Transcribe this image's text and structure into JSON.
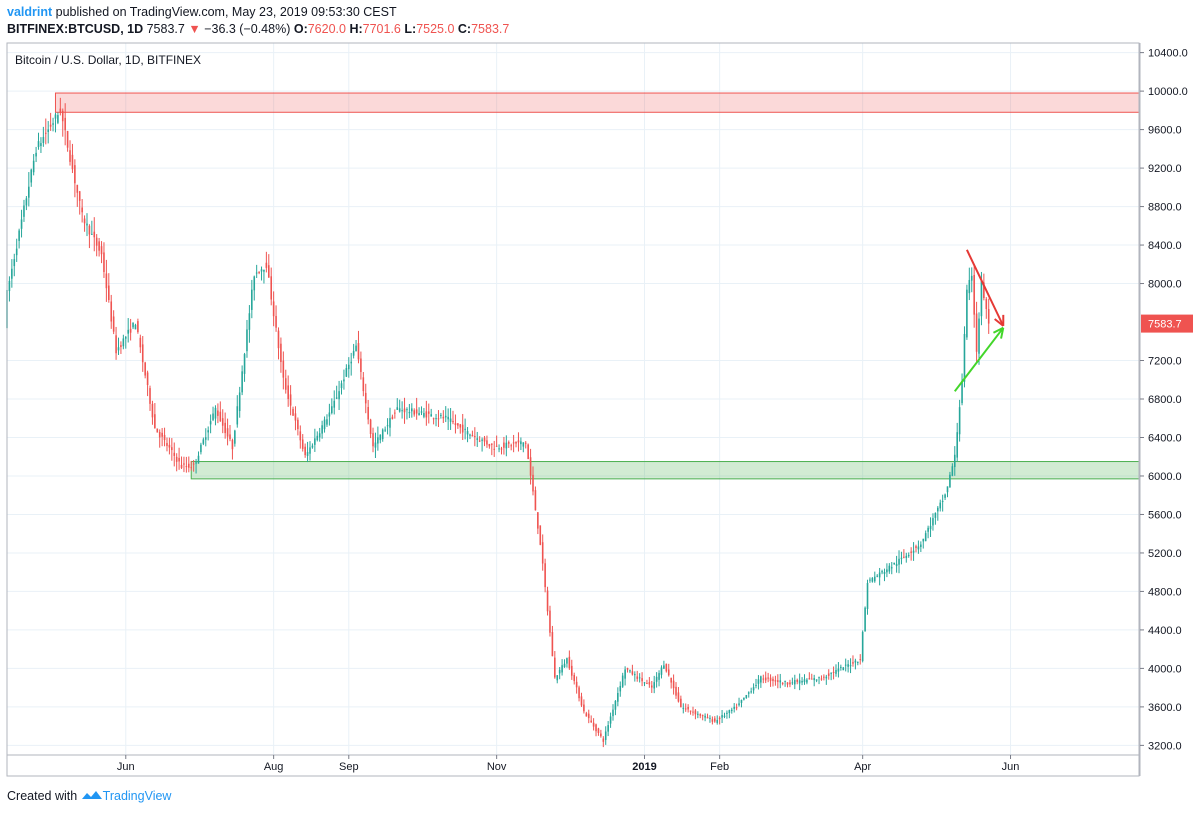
{
  "header": {
    "author": "valdrint",
    "published_text": "published on TradingView.com, May 23, 2019 09:53:30 CEST",
    "symbol": "BITFINEX:BTCUSD, 1D",
    "last": "7583.7",
    "change": "−36.3 (−0.48%)",
    "o_label": "O:",
    "o_value": "7620.0",
    "h_label": "H:",
    "h_value": "7701.6",
    "l_label": "L:",
    "l_value": "7525.0",
    "c_label": "C:",
    "c_value": "7583.7"
  },
  "footer": {
    "created_with": "Created with",
    "brand": "TradingView"
  },
  "colors": {
    "up": "#26a69a",
    "down": "#ef5350",
    "grid": "#e9f1f7",
    "resistance": "#ef5350",
    "support": "#4caf50",
    "arrow_down": "#e53935",
    "arrow_up": "#43d62a"
  },
  "chart_data": {
    "type": "candlestick",
    "title": "Bitcoin / U.S. Dollar, 1D, BITFINEX",
    "ylim": [
      3100,
      10500
    ],
    "y_ticks": [
      "10400.0",
      "10000.0",
      "9600.0",
      "9200.0",
      "8800.0",
      "8400.0",
      "8000.0",
      "7200.0",
      "6800.0",
      "6400.0",
      "6000.0",
      "5600.0",
      "5200.0",
      "4800.0",
      "4400.0",
      "4000.0",
      "3600.0",
      "3200.0"
    ],
    "x_ticks": [
      {
        "label": "Jun",
        "date": "2018-06-01"
      },
      {
        "label": "Aug",
        "date": "2018-08-01"
      },
      {
        "label": "Sep",
        "date": "2018-09-01"
      },
      {
        "label": "Nov",
        "date": "2018-11-01"
      },
      {
        "label": "2019",
        "date": "2019-01-01"
      },
      {
        "label": "Feb",
        "date": "2019-02-01"
      },
      {
        "label": "Apr",
        "date": "2019-04-01"
      },
      {
        "label": "Jun",
        "date": "2019-06-01"
      }
    ],
    "x_range": [
      "2018-04-13",
      "2019-07-24"
    ],
    "last_price": "7583.7",
    "zones": [
      {
        "type": "resistance",
        "from": "2018-05-03",
        "to": "2019-07-24",
        "low": 9780,
        "high": 9980
      },
      {
        "type": "support",
        "from": "2018-06-28",
        "to": "2019-07-24",
        "low": 5970,
        "high": 6150
      }
    ],
    "arrows": [
      {
        "color": "down",
        "from": {
          "date": "2019-05-14",
          "price": 8350
        },
        "to": {
          "date": "2019-05-29",
          "price": 7560
        }
      },
      {
        "color": "up",
        "from": {
          "date": "2019-05-09",
          "price": 6880
        },
        "to": {
          "date": "2019-05-29",
          "price": 7540
        }
      }
    ],
    "anchors": [
      [
        "2018-04-13",
        7900
      ],
      [
        "2018-04-25",
        9400
      ],
      [
        "2018-05-05",
        9800
      ],
      [
        "2018-05-14",
        8700
      ],
      [
        "2018-05-22",
        8300
      ],
      [
        "2018-05-28",
        7300
      ],
      [
        "2018-06-05",
        7600
      ],
      [
        "2018-06-13",
        6500
      ],
      [
        "2018-06-24",
        6100
      ],
      [
        "2018-06-29",
        6100
      ],
      [
        "2018-07-08",
        6700
      ],
      [
        "2018-07-15",
        6300
      ],
      [
        "2018-07-24",
        8100
      ],
      [
        "2018-07-29",
        8200
      ],
      [
        "2018-08-05",
        7000
      ],
      [
        "2018-08-14",
        6200
      ],
      [
        "2018-08-25",
        6700
      ],
      [
        "2018-09-04",
        7350
      ],
      [
        "2018-09-11",
        6300
      ],
      [
        "2018-09-21",
        6700
      ],
      [
        "2018-10-11",
        6600
      ],
      [
        "2018-10-20",
        6450
      ],
      [
        "2018-10-31",
        6300
      ],
      [
        "2018-11-13",
        6350
      ],
      [
        "2018-11-19",
        5300
      ],
      [
        "2018-11-25",
        3900
      ],
      [
        "2018-11-30",
        4100
      ],
      [
        "2018-12-07",
        3550
      ],
      [
        "2018-12-15",
        3250
      ],
      [
        "2018-12-24",
        4000
      ],
      [
        "2019-01-04",
        3800
      ],
      [
        "2019-01-09",
        4050
      ],
      [
        "2019-01-16",
        3600
      ],
      [
        "2019-01-30",
        3450
      ],
      [
        "2019-02-08",
        3600
      ],
      [
        "2019-02-18",
        3900
      ],
      [
        "2019-03-01",
        3850
      ],
      [
        "2019-03-15",
        3900
      ],
      [
        "2019-03-31",
        4100
      ],
      [
        "2019-04-03",
        4900
      ],
      [
        "2019-04-15",
        5100
      ],
      [
        "2019-04-25",
        5300
      ],
      [
        "2019-05-05",
        5800
      ],
      [
        "2019-05-09",
        6200
      ],
      [
        "2019-05-12",
        7000
      ],
      [
        "2019-05-14",
        7900
      ],
      [
        "2019-05-16",
        8100
      ],
      [
        "2019-05-18",
        7300
      ],
      [
        "2019-05-20",
        8000
      ],
      [
        "2019-05-23",
        7583.7
      ]
    ]
  }
}
